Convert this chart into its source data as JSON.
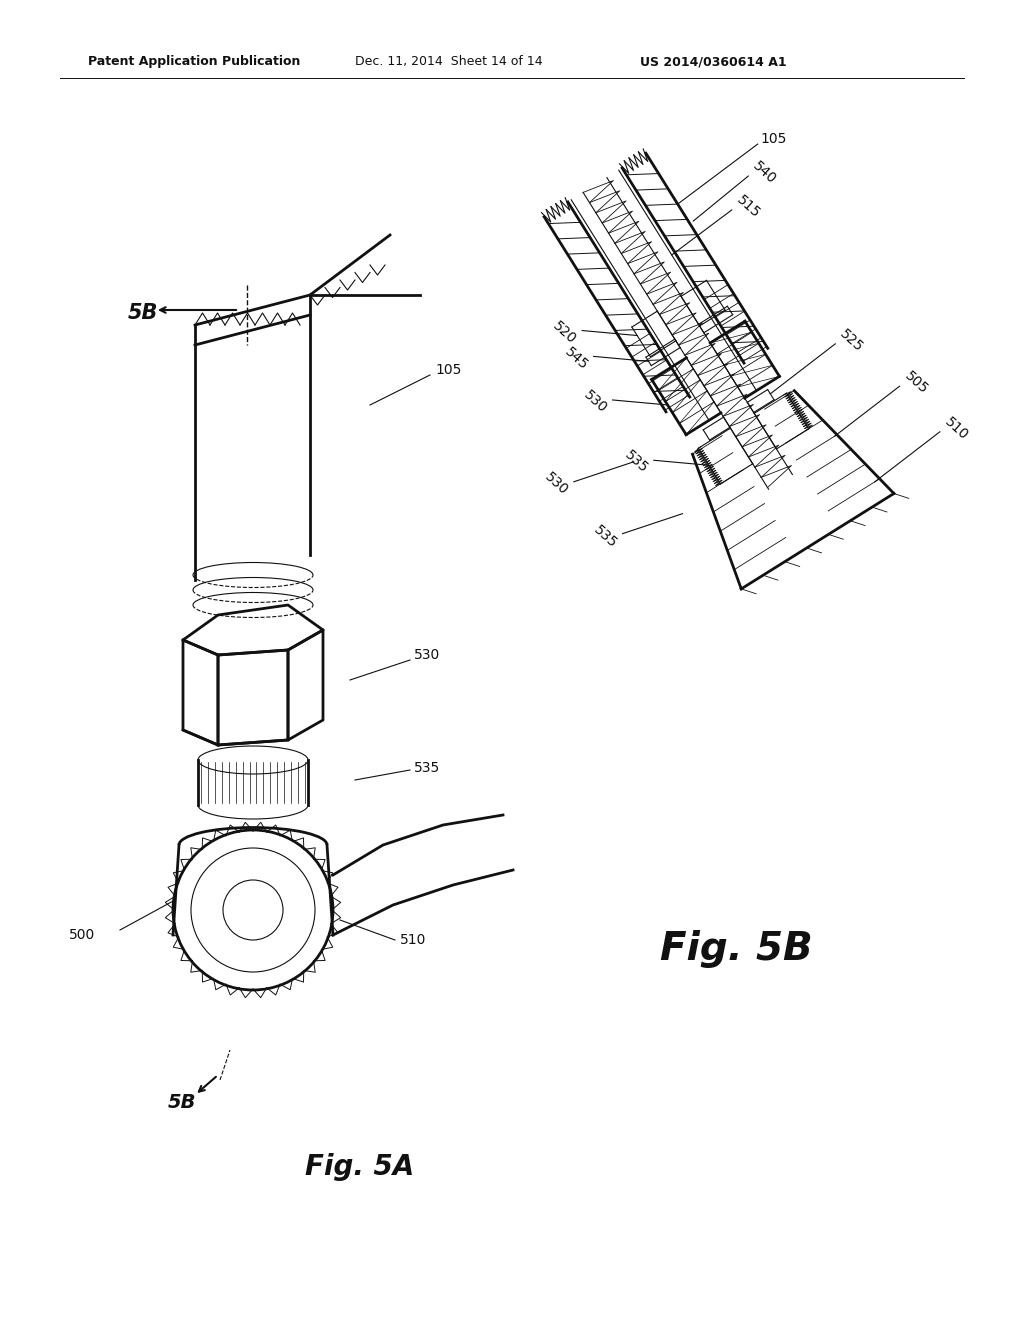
{
  "background_color": "#ffffff",
  "header_text": "Patent Application Publication",
  "header_date": "Dec. 11, 2014  Sheet 14 of 14",
  "header_patent": "US 2014/0360614 A1",
  "fig_a_label": "Fig. 5A",
  "fig_b_label": "Fig. 5B",
  "line_color": "#111111",
  "hatch_color": "#333333",
  "lw_main": 1.4,
  "lw_thin": 0.8,
  "lw_thick": 2.0
}
